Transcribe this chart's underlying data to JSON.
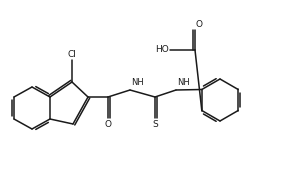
{
  "bg_color": "#ffffff",
  "line_color": "#1a1a1a",
  "lw": 1.1,
  "fs": 6.5,
  "fig_w": 2.81,
  "fig_h": 1.75,
  "xlim": [
    0,
    281
  ],
  "ylim": [
    0,
    175
  ]
}
